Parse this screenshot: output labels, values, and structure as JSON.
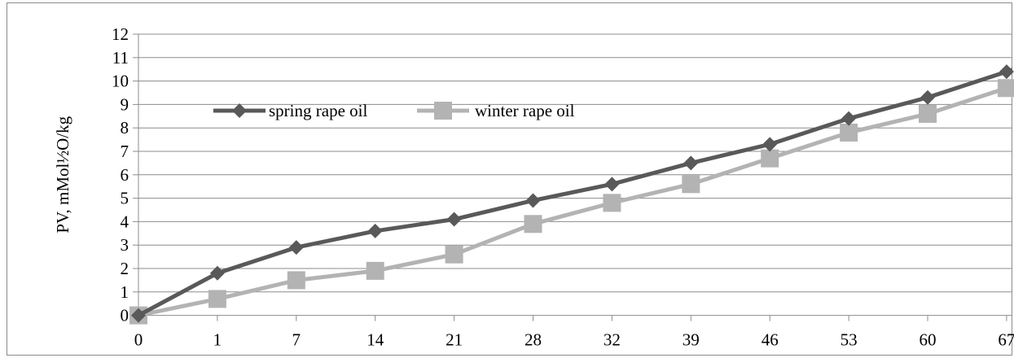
{
  "chart_data": {
    "type": "line",
    "title": "",
    "xlabel": "",
    "ylabel": "PV, mMol½O/kg",
    "x": [
      "0",
      "1",
      "7",
      "14",
      "21",
      "28",
      "32",
      "39",
      "46",
      "53",
      "60",
      "67"
    ],
    "ylim": [
      0,
      12
    ],
    "yticks": [
      "0",
      "1",
      "2",
      "3",
      "4",
      "5",
      "6",
      "7",
      "8",
      "9",
      "10",
      "11",
      "12"
    ],
    "grid": true,
    "legend": "top-left",
    "series": [
      {
        "name": "spring rape oil",
        "marker": "diamond",
        "color": "#595959",
        "values": [
          0,
          1.8,
          2.9,
          3.6,
          4.1,
          4.9,
          5.6,
          6.5,
          7.3,
          8.4,
          9.3,
          10.4
        ]
      },
      {
        "name": "winter rape oil",
        "marker": "square",
        "color": "#b3b3b3",
        "values": [
          0,
          0.7,
          1.5,
          1.9,
          2.6,
          3.9,
          4.8,
          5.6,
          6.7,
          7.8,
          8.6,
          9.7
        ]
      }
    ]
  }
}
